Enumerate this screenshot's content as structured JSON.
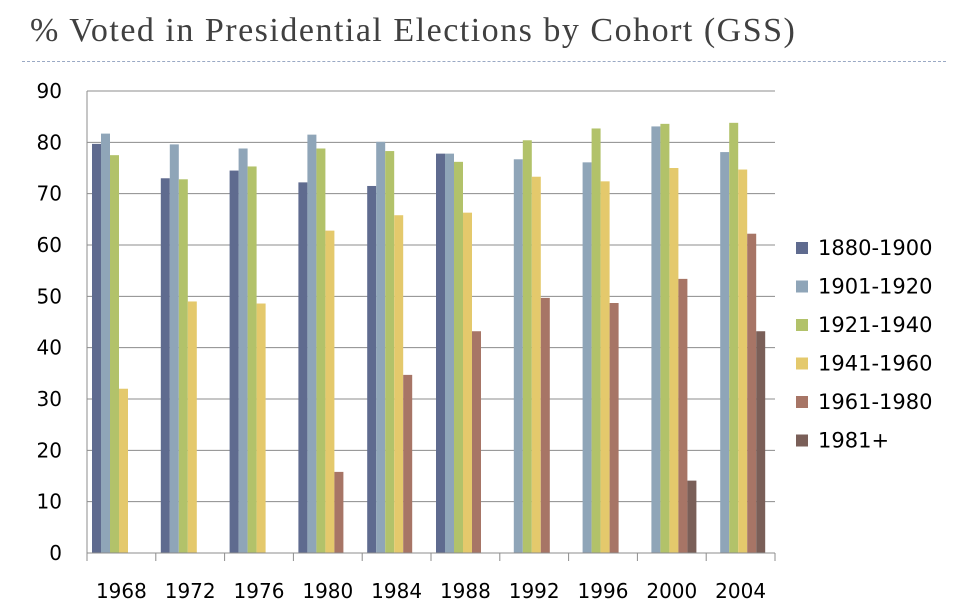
{
  "title": "% Voted in Presidential Elections by Cohort (GSS)",
  "chart_data": {
    "type": "bar",
    "title": "% Voted in Presidential Elections by Cohort (GSS)",
    "xlabel": "",
    "ylabel": "",
    "ylim": [
      0,
      90
    ],
    "yticks": [
      0,
      10,
      20,
      30,
      40,
      50,
      60,
      70,
      80,
      90
    ],
    "grid": true,
    "legend": "right",
    "categories": [
      "1968",
      "1972",
      "1976",
      "1980",
      "1984",
      "1988",
      "1992",
      "1996",
      "2000",
      "2004"
    ],
    "series": [
      {
        "name": "1880-1900",
        "color": "#5f6b8f",
        "values": [
          79.7,
          73,
          74.5,
          72.2,
          71.5,
          77.8,
          null,
          null,
          null,
          null
        ]
      },
      {
        "name": "1901-1920",
        "color": "#8fa5b8",
        "values": [
          81.7,
          79.6,
          78.8,
          81.5,
          80.1,
          77.8,
          76.7,
          76.1,
          83.1,
          78.1
        ]
      },
      {
        "name": "1921-1940",
        "color": "#b2c26a",
        "values": [
          77.5,
          72.8,
          75.3,
          78.8,
          78.3,
          76.2,
          80.4,
          82.7,
          83.6,
          83.8
        ]
      },
      {
        "name": "1941-1960",
        "color": "#e4c96c",
        "values": [
          32,
          49,
          48.6,
          62.8,
          65.8,
          66.3,
          73.3,
          72.4,
          75,
          74.7
        ]
      },
      {
        "name": "1961-1980",
        "color": "#a77566",
        "values": [
          null,
          null,
          null,
          15.8,
          34.7,
          43.2,
          49.7,
          48.7,
          53.4,
          62.2
        ]
      },
      {
        "name": "1981+",
        "color": "#7a5f58",
        "values": [
          null,
          null,
          null,
          null,
          null,
          null,
          null,
          null,
          14.1,
          43.2
        ]
      }
    ]
  }
}
